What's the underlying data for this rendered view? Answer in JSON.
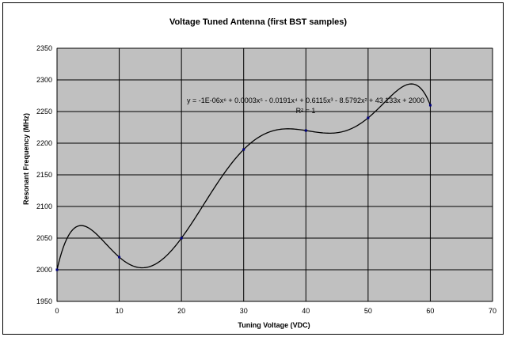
{
  "chart_data": {
    "type": "scatter",
    "title": "Voltage Tuned Antenna (first BST samples)",
    "xlabel": "Tuning Voltage (VDC)",
    "ylabel": "Resonant Frequency (MHz)",
    "xlim": [
      0,
      70
    ],
    "ylim": [
      1950,
      2350
    ],
    "xticks": [
      0,
      10,
      20,
      30,
      40,
      50,
      60,
      70
    ],
    "yticks": [
      1950,
      2000,
      2050,
      2100,
      2150,
      2200,
      2250,
      2300,
      2350
    ],
    "grid": true,
    "background_color": "#c0c0c0",
    "line_color": "#000000",
    "marker_color": "#000080",
    "points": [
      {
        "x": 0,
        "y": 2000
      },
      {
        "x": 10,
        "y": 2020
      },
      {
        "x": 20,
        "y": 2050
      },
      {
        "x": 30,
        "y": 2190
      },
      {
        "x": 40,
        "y": 2220
      },
      {
        "x": 50,
        "y": 2240
      },
      {
        "x": 60,
        "y": 2260
      }
    ],
    "trendline": {
      "type": "polynomial",
      "order": 6,
      "equation_lines": [
        "y = -1E-06x⁶ + 0.0003x⁵ - 0.0191x⁴ + 0.6115x³ - 8.5792x² + 43.133x + 2000",
        "R² = 1"
      ]
    }
  }
}
